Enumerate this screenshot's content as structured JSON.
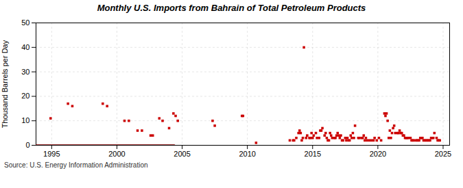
{
  "chart_data": {
    "type": "scatter",
    "title": "Monthly U.S. Imports from Bahrain of Total Petroleum Products",
    "ylabel": "Thousand Barrels per Day",
    "annotations": [
      "Source: U.S. Energy Information Administration"
    ],
    "xlim": [
      1993.8,
      2025.5
    ],
    "xticks": [
      1995,
      2000,
      2005,
      2010,
      2015,
      2020,
      2025
    ],
    "ylim": [
      0,
      50
    ],
    "yticks": [
      0,
      10,
      20,
      30,
      40,
      50
    ],
    "grid": true,
    "series": [
      {
        "type": "line",
        "color": "#8b0000",
        "line_style": "solid",
        "x": [
          1993.8,
          2004.4
        ],
        "values": [
          0,
          0
        ]
      },
      {
        "type": "scatter",
        "color": "#cc0000",
        "marker": "square",
        "x": [
          1994.917,
          1996.25,
          1996.583,
          1998.917,
          1999.25,
          2000.583,
          2000.917,
          2001.583,
          2001.917,
          2002.583,
          2002.75,
          2003.25,
          2003.5,
          2004.0,
          2004.333,
          2004.5,
          2004.667,
          2007.333,
          2007.5,
          2009.583,
          2009.667,
          2010.667,
          2013.25,
          2013.5,
          2013.583,
          2013.75,
          2013.917,
          2014.0,
          2014.083,
          2014.167,
          2014.25,
          2014.333,
          2014.5,
          2014.583,
          2014.75,
          2014.833,
          2014.917,
          2015.0,
          2015.083,
          2015.25,
          2015.333,
          2015.5,
          2015.583,
          2015.667,
          2015.75,
          2015.917,
          2016.0,
          2016.083,
          2016.167,
          2016.25,
          2016.333,
          2016.417,
          2016.5,
          2016.667,
          2016.75,
          2016.833,
          2016.917,
          2017.0,
          2017.083,
          2017.167,
          2017.25,
          2017.333,
          2017.5,
          2017.583,
          2017.667,
          2017.75,
          2017.833,
          2017.917,
          2018.0,
          2018.083,
          2018.167,
          2018.25,
          2018.5,
          2018.583,
          2018.75,
          2018.833,
          2018.917,
          2019.0,
          2019.083,
          2019.167,
          2019.333,
          2019.5,
          2019.667,
          2019.75,
          2019.917,
          2020.083,
          2020.25,
          2020.5,
          2020.583,
          2020.667,
          2020.75,
          2020.833,
          2020.917,
          2021.0,
          2021.083,
          2021.167,
          2021.25,
          2021.333,
          2021.5,
          2021.583,
          2021.667,
          2021.75,
          2021.833,
          2021.917,
          2022.0,
          2022.083,
          2022.167,
          2022.25,
          2022.333,
          2022.5,
          2022.583,
          2022.667,
          2022.75,
          2022.917,
          2023.0,
          2023.083,
          2023.167,
          2023.25,
          2023.333,
          2023.417,
          2023.5,
          2023.583,
          2023.667,
          2023.75,
          2023.833,
          2023.917,
          2024.0,
          2024.083,
          2024.167,
          2024.25,
          2024.333,
          2024.5,
          2024.583,
          2024.667,
          2024.75
        ],
        "values": [
          11,
          17,
          16,
          17,
          16,
          10,
          10,
          6,
          6,
          4,
          4,
          11,
          10,
          7,
          13,
          12,
          10,
          10,
          8,
          12,
          12,
          1,
          2,
          2,
          2,
          3,
          5,
          6,
          5,
          2,
          3,
          40,
          3,
          4,
          3,
          3,
          5,
          3,
          4,
          5,
          3,
          3,
          6,
          6,
          7,
          4,
          5,
          3,
          2,
          2,
          5,
          4,
          3,
          3,
          3,
          4,
          5,
          4,
          3,
          4,
          2,
          2,
          3,
          2,
          3,
          2,
          2,
          4,
          3,
          5,
          3,
          8,
          3,
          3,
          3,
          3,
          4,
          2,
          3,
          2,
          2,
          2,
          2,
          3,
          2,
          3,
          2,
          13,
          12,
          13,
          10,
          3,
          6,
          3,
          5,
          7,
          8,
          5,
          5,
          5,
          6,
          5,
          5,
          4,
          4,
          3,
          3,
          3,
          3,
          3,
          2,
          2,
          2,
          2,
          2,
          2,
          2,
          3,
          3,
          3,
          2,
          2,
          2,
          2,
          2,
          2,
          2,
          3,
          3,
          3,
          5,
          3,
          2,
          2,
          2
        ]
      }
    ]
  }
}
